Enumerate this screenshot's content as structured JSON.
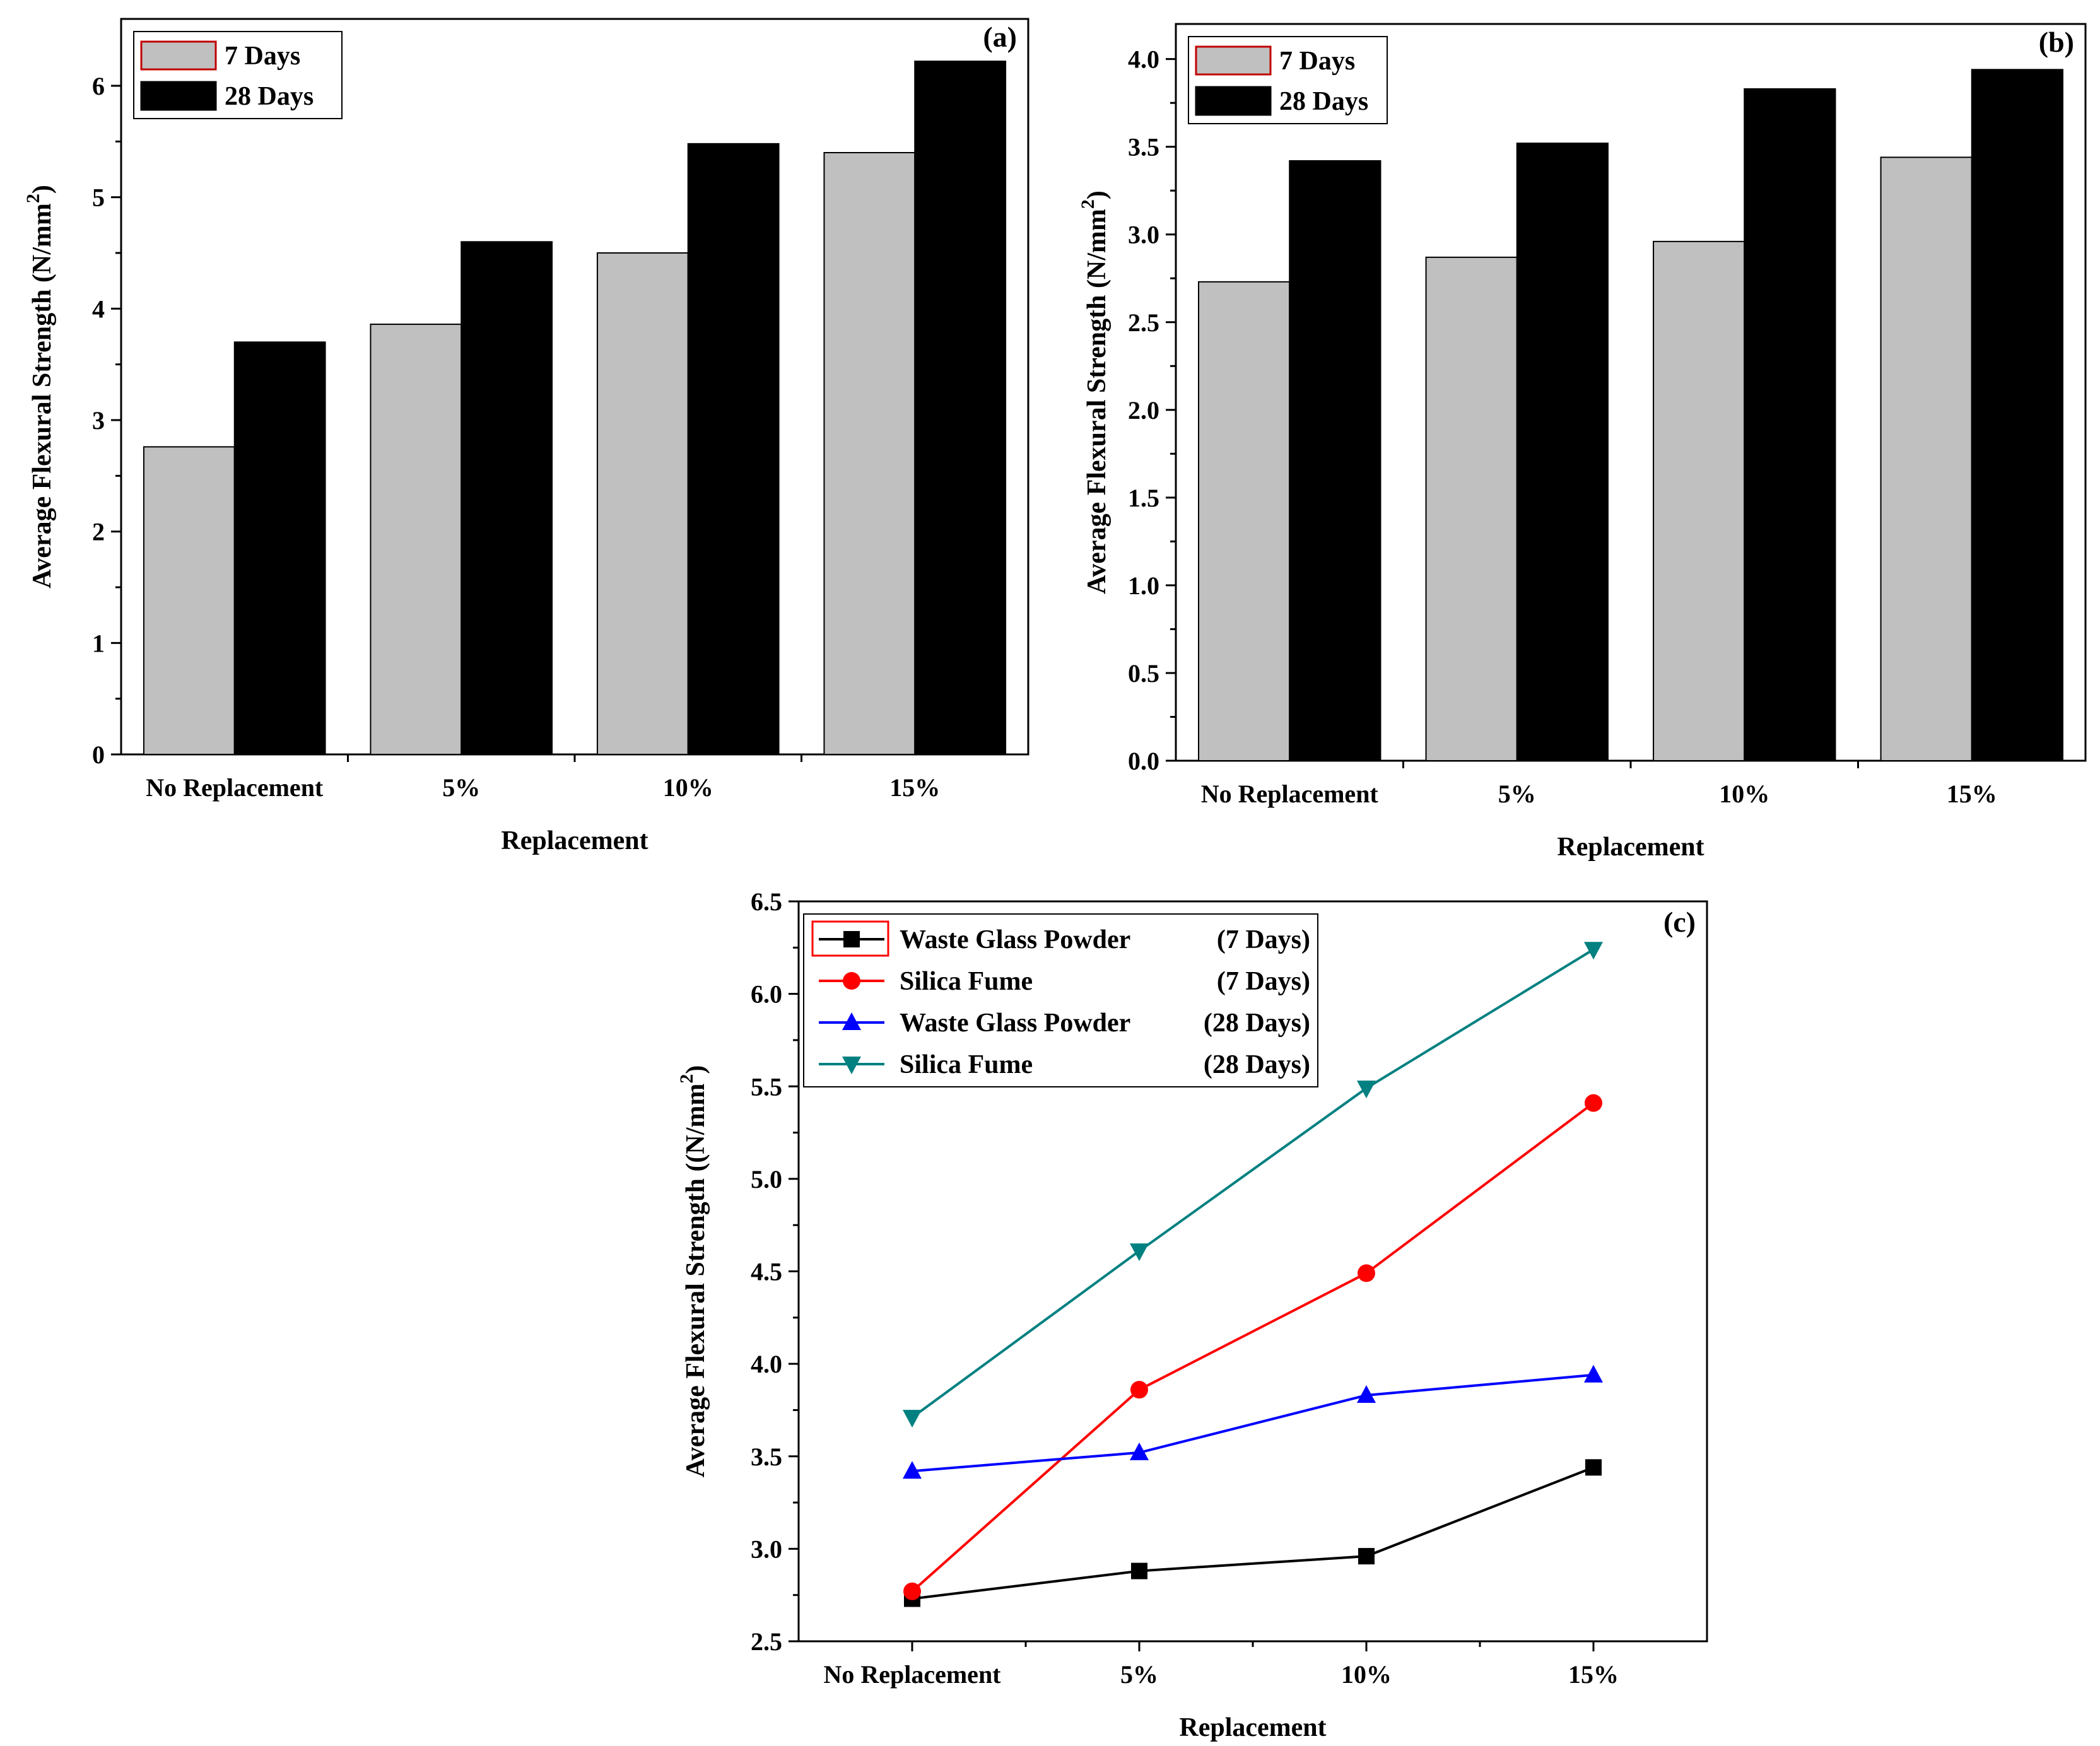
{
  "chart_data": [
    {
      "type": "bar",
      "panel_label": "(a)",
      "categories": [
        "No Replacement",
        "5%",
        "10%",
        "15%"
      ],
      "series": [
        {
          "name": "7 Days",
          "values": [
            2.76,
            3.86,
            4.5,
            5.4
          ],
          "color": "#c0c0c0"
        },
        {
          "name": "28 Days",
          "values": [
            3.7,
            4.6,
            5.48,
            6.22
          ],
          "color": "#000000"
        }
      ],
      "xlabel": "Replacement",
      "ylabel": "Average Flexural Strength (N/mm",
      "ylabel_sup": "2",
      "ylabel_close": ")",
      "ylim": [
        0,
        6.6
      ],
      "yticks": [
        0,
        1,
        2,
        3,
        4,
        5,
        6
      ],
      "ytick_labels": [
        "0",
        "1",
        "2",
        "3",
        "4",
        "5",
        "6"
      ],
      "legend_position": "top-left"
    },
    {
      "type": "bar",
      "panel_label": "(b)",
      "categories": [
        "No Replacement",
        "5%",
        "10%",
        "15%"
      ],
      "series": [
        {
          "name": "7 Days",
          "values": [
            2.73,
            2.87,
            2.96,
            3.44
          ],
          "color": "#c0c0c0"
        },
        {
          "name": "28 Days",
          "values": [
            3.42,
            3.52,
            3.83,
            3.94
          ],
          "color": "#000000"
        }
      ],
      "xlabel": "Replacement",
      "ylabel": "Average Flexural Strength (N/mm",
      "ylabel_sup": "2",
      "ylabel_close": ")",
      "ylim": [
        0,
        4.2
      ],
      "yticks": [
        0,
        0.5,
        1,
        1.5,
        2,
        2.5,
        3,
        3.5,
        4
      ],
      "ytick_labels": [
        "0.0",
        "0.5",
        "1.0",
        "1.5",
        "2.0",
        "2.5",
        "3.0",
        "3.5",
        "4.0"
      ],
      "legend_position": "top-left"
    },
    {
      "type": "line",
      "panel_label": "(c)",
      "categories": [
        "No Replacement",
        "5%",
        "10%",
        "15%"
      ],
      "series": [
        {
          "name": "Waste Glass Powder",
          "days": "(7 Days)",
          "values": [
            2.73,
            2.88,
            2.96,
            3.44
          ],
          "color": "#000000",
          "marker": "square"
        },
        {
          "name": "Silica Fume",
          "days": "(7 Days)",
          "values": [
            2.77,
            3.86,
            4.49,
            5.41
          ],
          "color": "#ff0000",
          "marker": "circle"
        },
        {
          "name": "Waste Glass Powder",
          "days": "(28 Days)",
          "values": [
            3.42,
            3.52,
            3.83,
            3.94
          ],
          "color": "#0000ff",
          "marker": "triangle-up"
        },
        {
          "name": "Silica Fume",
          "days": "(28 Days)",
          "values": [
            3.71,
            4.61,
            5.49,
            6.24
          ],
          "color": "#008080",
          "marker": "triangle-down"
        }
      ],
      "xlabel": "Replacement",
      "ylabel": "Average Flexural Strength ((N/mm",
      "ylabel_sup": "2",
      "ylabel_close": ")",
      "ylim": [
        2.5,
        6.5
      ],
      "yticks": [
        2.5,
        3,
        3.5,
        4,
        4.5,
        5,
        5.5,
        6,
        6.5
      ],
      "ytick_labels": [
        "2.5",
        "3.0",
        "3.5",
        "4.0",
        "4.5",
        "5.0",
        "5.5",
        "6.0",
        "6.5"
      ],
      "legend_position": "top-left"
    }
  ]
}
